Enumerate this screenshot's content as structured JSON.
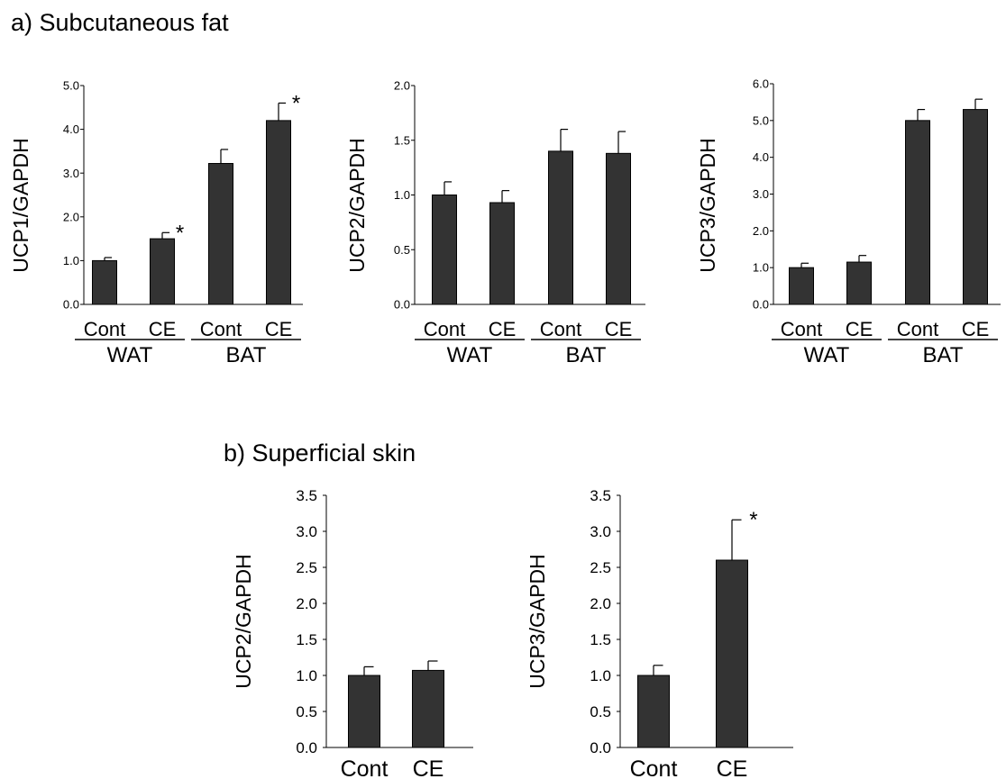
{
  "sections": {
    "a_title": "a) Subcutaneous fat",
    "b_title": "b) Superficial skin"
  },
  "colors": {
    "bar": "#333333",
    "axis": "#000000",
    "text": "#000000"
  },
  "chart_data": [
    {
      "type": "bar",
      "section": "a",
      "ylabel": "UCP1/GAPDH",
      "categories": [
        "Cont",
        "CE",
        "Cont",
        "CE"
      ],
      "groups": [
        {
          "label": "WAT",
          "categories": [
            0,
            1
          ]
        },
        {
          "label": "BAT",
          "categories": [
            2,
            3
          ]
        }
      ],
      "values": [
        1.0,
        1.5,
        3.22,
        4.2
      ],
      "errors": [
        0.07,
        0.14,
        0.32,
        0.4
      ],
      "significant": [
        false,
        true,
        false,
        true
      ],
      "significance_marker": "*",
      "ylim": [
        0,
        5
      ],
      "yticks": [
        "0.0",
        "1.0",
        "2.0",
        "3.0",
        "4.0",
        "5.0"
      ]
    },
    {
      "type": "bar",
      "section": "a",
      "ylabel": "UCP2/GAPDH",
      "categories": [
        "Cont",
        "CE",
        "Cont",
        "CE"
      ],
      "groups": [
        {
          "label": "WAT",
          "categories": [
            0,
            1
          ]
        },
        {
          "label": "BAT",
          "categories": [
            2,
            3
          ]
        }
      ],
      "values": [
        1.0,
        0.93,
        1.4,
        1.38
      ],
      "errors": [
        0.12,
        0.11,
        0.2,
        0.2
      ],
      "significant": [
        false,
        false,
        false,
        false
      ],
      "significance_marker": "*",
      "ylim": [
        0,
        2
      ],
      "yticks": [
        "0.0",
        "0.5",
        "1.0",
        "1.5",
        "2.0"
      ]
    },
    {
      "type": "bar",
      "section": "a",
      "ylabel": "UCP3/GAPDH",
      "categories": [
        "Cont",
        "CE",
        "Cont",
        "CE"
      ],
      "groups": [
        {
          "label": "WAT",
          "categories": [
            0,
            1
          ]
        },
        {
          "label": "BAT",
          "categories": [
            2,
            3
          ]
        }
      ],
      "values": [
        1.0,
        1.15,
        5.0,
        5.3
      ],
      "errors": [
        0.12,
        0.18,
        0.3,
        0.28
      ],
      "significant": [
        false,
        false,
        false,
        false
      ],
      "significance_marker": "*",
      "ylim": [
        0,
        6
      ],
      "yticks": [
        "0.0",
        "1.0",
        "2.0",
        "3.0",
        "4.0",
        "5.0",
        "6.0"
      ]
    },
    {
      "type": "bar",
      "section": "b",
      "ylabel": "UCP2/GAPDH",
      "categories": [
        "Cont",
        "CE"
      ],
      "groups": [],
      "values": [
        1.0,
        1.07
      ],
      "errors": [
        0.12,
        0.13
      ],
      "significant": [
        false,
        false
      ],
      "significance_marker": "*",
      "ylim": [
        0,
        3.5
      ],
      "yticks": [
        "0.0",
        "0.5",
        "1.0",
        "1.5",
        "2.0",
        "2.5",
        "3.0",
        "3.5"
      ]
    },
    {
      "type": "bar",
      "section": "b",
      "ylabel": "UCP3/GAPDH",
      "categories": [
        "Cont",
        "CE"
      ],
      "groups": [],
      "values": [
        1.0,
        2.6
      ],
      "errors": [
        0.14,
        0.56
      ],
      "significant": [
        false,
        true
      ],
      "significance_marker": "*",
      "ylim": [
        0,
        3.5
      ],
      "yticks": [
        "0.0",
        "0.5",
        "1.0",
        "1.5",
        "2.0",
        "2.5",
        "3.0",
        "3.5"
      ]
    }
  ]
}
